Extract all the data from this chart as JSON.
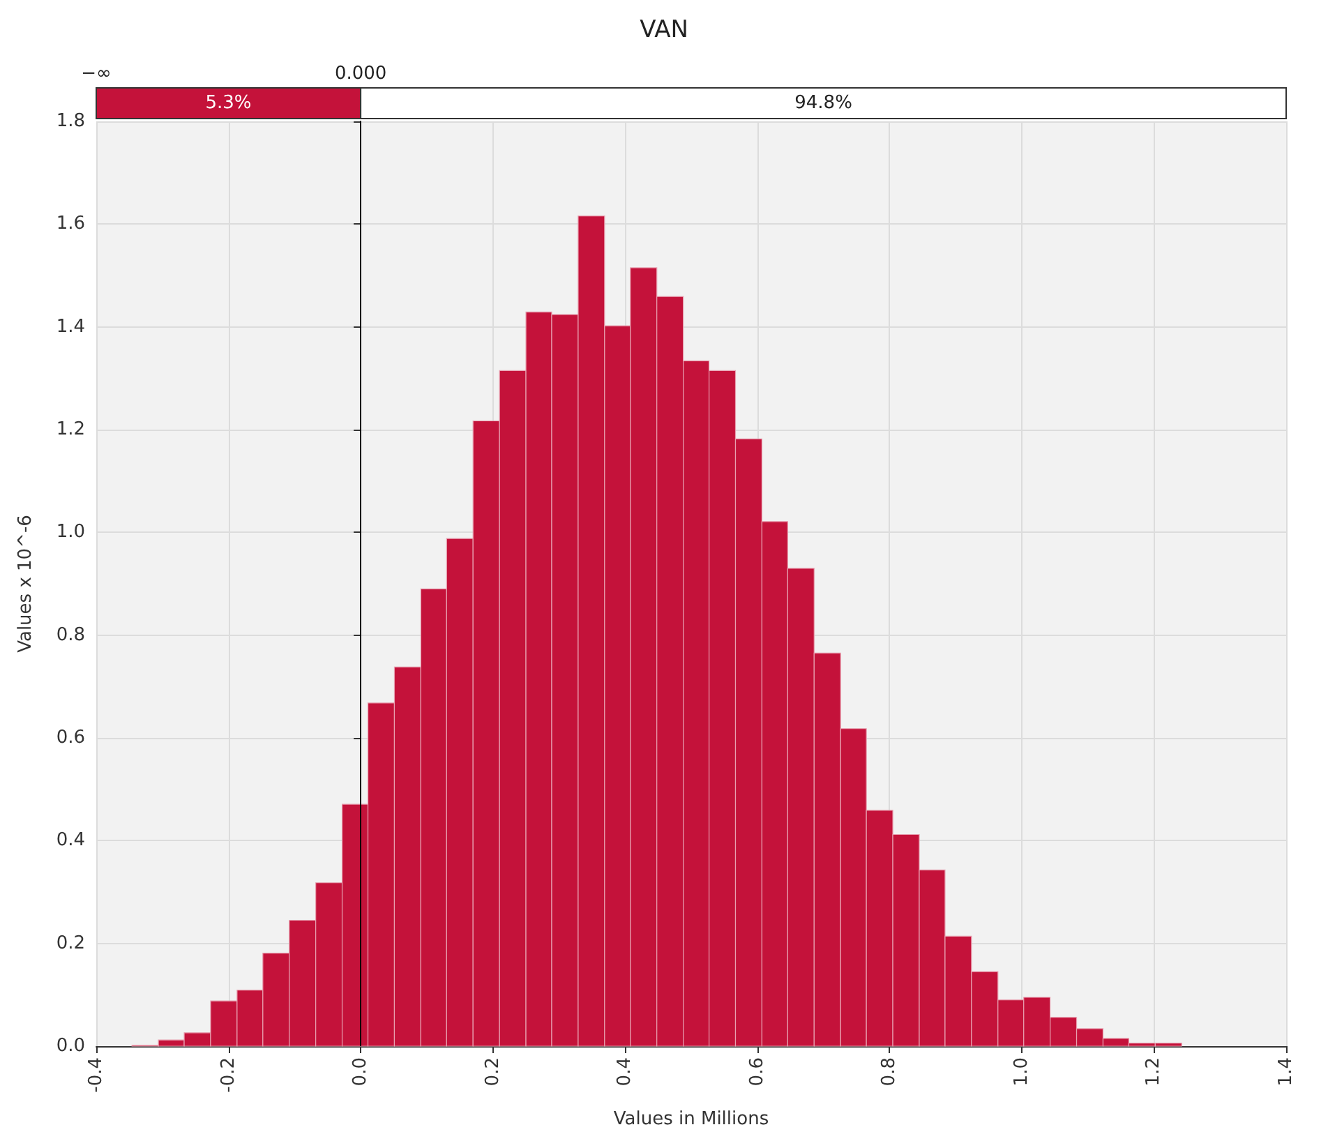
{
  "chart_data": {
    "type": "histogram",
    "title": "VAN",
    "xlabel": "Values in Millions",
    "ylabel": "Values x 10^-6",
    "bins": [
      -0.346,
      -0.306,
      -0.267,
      -0.227,
      -0.187,
      -0.148,
      -0.108,
      -0.068,
      -0.028,
      0.011,
      0.051,
      0.091,
      0.13,
      0.17,
      0.21,
      0.25,
      0.289,
      0.329,
      0.369,
      0.408,
      0.448,
      0.488,
      0.527,
      0.567,
      0.607,
      0.646,
      0.686,
      0.726,
      0.765,
      0.805,
      0.845,
      0.884,
      0.924,
      0.964,
      1.003,
      1.043,
      1.083,
      1.123,
      1.162,
      1.202,
      1.242
    ],
    "values": [
      0.002,
      0.012,
      0.026,
      0.088,
      0.109,
      0.181,
      0.245,
      0.318,
      0.471,
      0.668,
      0.738,
      0.89,
      0.988,
      1.217,
      1.315,
      1.429,
      1.424,
      1.616,
      1.402,
      1.515,
      1.459,
      1.334,
      1.315,
      1.182,
      1.021,
      0.93,
      0.765,
      0.618,
      0.459,
      0.412,
      0.343,
      0.214,
      0.145,
      0.09,
      0.095,
      0.056,
      0.034,
      0.015,
      0.006,
      0.006
    ],
    "color": "#c4123a",
    "xlim": [
      -0.4,
      1.4
    ],
    "xticks": [
      {
        "value": -0.4,
        "label": "-0.4"
      },
      {
        "value": -0.2,
        "label": "-0.2"
      },
      {
        "value": 0,
        "label": "0.0"
      },
      {
        "value": 0.2,
        "label": "0.2"
      },
      {
        "value": 0.4,
        "label": "0.4"
      },
      {
        "value": 0.6,
        "label": "0.6"
      },
      {
        "value": 0.8,
        "label": "0.8"
      },
      {
        "value": 1.0,
        "label": "1.0"
      },
      {
        "value": 1.2,
        "label": "1.2"
      },
      {
        "value": 1.4,
        "label": "1.4"
      }
    ],
    "ylim": [
      0,
      1.8
    ],
    "yticks": [
      {
        "value": 0,
        "label": "0.0"
      },
      {
        "value": 0.2,
        "label": "0.2"
      },
      {
        "value": 0.4,
        "label": "0.4"
      },
      {
        "value": 0.6,
        "label": "0.6"
      },
      {
        "value": 0.8,
        "label": "0.8"
      },
      {
        "value": 1.0,
        "label": "1.0"
      },
      {
        "value": 1.2,
        "label": "1.2"
      },
      {
        "value": 1.4,
        "label": "1.4"
      },
      {
        "value": 1.6,
        "label": "1.6"
      },
      {
        "value": 1.8,
        "label": "1.8"
      }
    ],
    "grid": true,
    "ref_lines": [
      {
        "axis": "x",
        "value": 0,
        "label": "0.000",
        "color": "#000000"
      }
    ],
    "annotations": [
      "−∞",
      "5.3%",
      "94.8%"
    ]
  }
}
